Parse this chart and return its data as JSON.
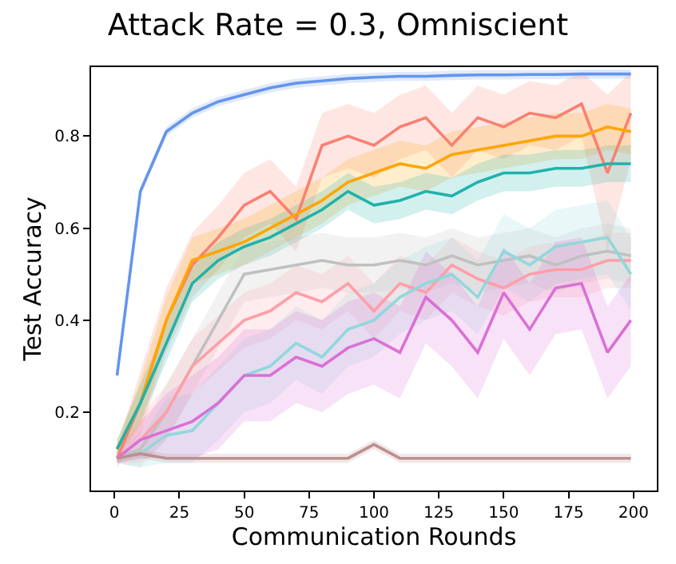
{
  "chart_data": {
    "type": "line",
    "title": "Attack Rate = 0.3, Omniscient",
    "xlabel": "Communication Rounds",
    "ylabel": "Test Accuracy",
    "x": [
      1,
      10,
      20,
      30,
      40,
      50,
      60,
      70,
      80,
      90,
      100,
      110,
      120,
      130,
      140,
      150,
      160,
      170,
      180,
      190,
      199
    ],
    "xlim": [
      -9,
      209
    ],
    "xticks": [
      0,
      25,
      50,
      75,
      100,
      125,
      150,
      175,
      200
    ],
    "ylim": [
      0.03,
      0.95
    ],
    "yticks": [
      0.2,
      0.4,
      0.6,
      0.8
    ],
    "grid": false,
    "marker": "none",
    "line_style": "solid",
    "series": [
      {
        "color": "#6495ed",
        "values": [
          0.28,
          0.68,
          0.81,
          0.85,
          0.875,
          0.89,
          0.905,
          0.915,
          0.92,
          0.925,
          0.928,
          0.93,
          0.93,
          0.932,
          0.933,
          0.933,
          0.934,
          0.934,
          0.935,
          0.935,
          0.935
        ],
        "lower": [
          0.27,
          0.67,
          0.8,
          0.84,
          0.865,
          0.88,
          0.895,
          0.905,
          0.91,
          0.915,
          0.918,
          0.92,
          0.92,
          0.922,
          0.923,
          0.923,
          0.924,
          0.924,
          0.925,
          0.925,
          0.925
        ],
        "upper": [
          0.29,
          0.69,
          0.82,
          0.86,
          0.885,
          0.9,
          0.915,
          0.925,
          0.93,
          0.935,
          0.938,
          0.94,
          0.94,
          0.942,
          0.943,
          0.943,
          0.944,
          0.944,
          0.945,
          0.945,
          0.945
        ]
      },
      {
        "color": "#fa8072",
        "values": [
          0.1,
          0.22,
          0.4,
          0.52,
          0.58,
          0.65,
          0.68,
          0.62,
          0.78,
          0.8,
          0.78,
          0.82,
          0.84,
          0.78,
          0.84,
          0.82,
          0.85,
          0.84,
          0.87,
          0.72,
          0.85
        ],
        "lower": [
          0.08,
          0.15,
          0.33,
          0.45,
          0.51,
          0.58,
          0.61,
          0.55,
          0.71,
          0.73,
          0.71,
          0.75,
          0.77,
          0.71,
          0.77,
          0.75,
          0.78,
          0.77,
          0.8,
          0.55,
          0.75
        ],
        "upper": [
          0.12,
          0.29,
          0.47,
          0.59,
          0.65,
          0.72,
          0.75,
          0.69,
          0.85,
          0.87,
          0.85,
          0.89,
          0.91,
          0.85,
          0.91,
          0.89,
          0.92,
          0.91,
          0.94,
          0.89,
          0.94
        ]
      },
      {
        "color": "#ffa500",
        "values": [
          0.12,
          0.22,
          0.4,
          0.53,
          0.55,
          0.57,
          0.6,
          0.63,
          0.66,
          0.7,
          0.72,
          0.74,
          0.73,
          0.76,
          0.77,
          0.78,
          0.79,
          0.8,
          0.8,
          0.82,
          0.81
        ],
        "lower": [
          0.1,
          0.17,
          0.35,
          0.48,
          0.5,
          0.52,
          0.55,
          0.58,
          0.61,
          0.65,
          0.67,
          0.69,
          0.68,
          0.71,
          0.72,
          0.73,
          0.74,
          0.75,
          0.75,
          0.77,
          0.76
        ],
        "upper": [
          0.14,
          0.27,
          0.45,
          0.58,
          0.6,
          0.62,
          0.65,
          0.68,
          0.71,
          0.75,
          0.77,
          0.79,
          0.78,
          0.81,
          0.82,
          0.83,
          0.84,
          0.85,
          0.85,
          0.87,
          0.86
        ]
      },
      {
        "color": "#20b2aa",
        "values": [
          0.12,
          0.22,
          0.35,
          0.48,
          0.53,
          0.56,
          0.58,
          0.61,
          0.64,
          0.68,
          0.65,
          0.66,
          0.68,
          0.67,
          0.7,
          0.72,
          0.72,
          0.73,
          0.73,
          0.74,
          0.74
        ],
        "lower": [
          0.1,
          0.18,
          0.31,
          0.44,
          0.49,
          0.52,
          0.54,
          0.57,
          0.6,
          0.64,
          0.61,
          0.62,
          0.64,
          0.63,
          0.66,
          0.68,
          0.68,
          0.69,
          0.69,
          0.7,
          0.7
        ],
        "upper": [
          0.14,
          0.26,
          0.39,
          0.52,
          0.57,
          0.6,
          0.62,
          0.65,
          0.68,
          0.72,
          0.69,
          0.7,
          0.72,
          0.71,
          0.74,
          0.76,
          0.76,
          0.77,
          0.77,
          0.78,
          0.78
        ]
      },
      {
        "color": "#c0c0c0",
        "values": [
          0.1,
          0.12,
          0.2,
          0.3,
          0.4,
          0.5,
          0.51,
          0.52,
          0.53,
          0.52,
          0.52,
          0.53,
          0.52,
          0.54,
          0.52,
          0.53,
          0.54,
          0.52,
          0.54,
          0.55,
          0.54
        ],
        "lower": [
          0.09,
          0.08,
          0.14,
          0.24,
          0.34,
          0.44,
          0.45,
          0.46,
          0.47,
          0.46,
          0.46,
          0.47,
          0.46,
          0.48,
          0.46,
          0.47,
          0.48,
          0.46,
          0.48,
          0.49,
          0.48
        ],
        "upper": [
          0.11,
          0.16,
          0.26,
          0.36,
          0.46,
          0.56,
          0.57,
          0.58,
          0.59,
          0.58,
          0.58,
          0.59,
          0.58,
          0.6,
          0.58,
          0.59,
          0.6,
          0.58,
          0.6,
          0.61,
          0.6
        ]
      },
      {
        "color": "#ff9ea8",
        "values": [
          0.1,
          0.14,
          0.2,
          0.3,
          0.35,
          0.4,
          0.42,
          0.46,
          0.44,
          0.48,
          0.42,
          0.48,
          0.46,
          0.52,
          0.49,
          0.47,
          0.5,
          0.51,
          0.51,
          0.53,
          0.53
        ],
        "lower": [
          0.09,
          0.09,
          0.14,
          0.24,
          0.29,
          0.34,
          0.36,
          0.4,
          0.38,
          0.42,
          0.36,
          0.42,
          0.4,
          0.46,
          0.43,
          0.41,
          0.44,
          0.45,
          0.45,
          0.47,
          0.47
        ],
        "upper": [
          0.11,
          0.19,
          0.26,
          0.36,
          0.41,
          0.46,
          0.48,
          0.52,
          0.5,
          0.54,
          0.48,
          0.54,
          0.52,
          0.58,
          0.55,
          0.53,
          0.56,
          0.57,
          0.57,
          0.59,
          0.59
        ]
      },
      {
        "color": "#90d8dc",
        "values": [
          0.1,
          0.11,
          0.15,
          0.16,
          0.22,
          0.28,
          0.3,
          0.35,
          0.32,
          0.38,
          0.4,
          0.45,
          0.48,
          0.5,
          0.45,
          0.55,
          0.52,
          0.56,
          0.57,
          0.58,
          0.5
        ],
        "lower": [
          0.09,
          0.08,
          0.09,
          0.09,
          0.14,
          0.2,
          0.22,
          0.27,
          0.24,
          0.3,
          0.32,
          0.37,
          0.4,
          0.42,
          0.37,
          0.47,
          0.44,
          0.48,
          0.49,
          0.5,
          0.42
        ],
        "upper": [
          0.11,
          0.14,
          0.23,
          0.24,
          0.3,
          0.36,
          0.38,
          0.43,
          0.4,
          0.46,
          0.48,
          0.53,
          0.56,
          0.58,
          0.53,
          0.63,
          0.6,
          0.64,
          0.65,
          0.66,
          0.58
        ]
      },
      {
        "color": "#da70d6",
        "values": [
          0.1,
          0.14,
          0.16,
          0.18,
          0.22,
          0.28,
          0.28,
          0.32,
          0.3,
          0.34,
          0.36,
          0.33,
          0.45,
          0.4,
          0.33,
          0.46,
          0.38,
          0.47,
          0.48,
          0.33,
          0.4
        ],
        "lower": [
          0.09,
          0.1,
          0.1,
          0.1,
          0.12,
          0.18,
          0.18,
          0.22,
          0.2,
          0.24,
          0.26,
          0.23,
          0.35,
          0.3,
          0.23,
          0.36,
          0.28,
          0.37,
          0.38,
          0.23,
          0.3
        ],
        "upper": [
          0.11,
          0.18,
          0.24,
          0.28,
          0.32,
          0.38,
          0.38,
          0.42,
          0.4,
          0.44,
          0.46,
          0.43,
          0.55,
          0.5,
          0.43,
          0.56,
          0.48,
          0.57,
          0.58,
          0.43,
          0.5
        ]
      },
      {
        "color": "#bc8f8f",
        "values": [
          0.1,
          0.11,
          0.1,
          0.1,
          0.1,
          0.1,
          0.1,
          0.1,
          0.1,
          0.1,
          0.13,
          0.1,
          0.1,
          0.1,
          0.1,
          0.1,
          0.1,
          0.1,
          0.1,
          0.1,
          0.1
        ],
        "lower": [
          0.09,
          0.1,
          0.09,
          0.09,
          0.09,
          0.09,
          0.09,
          0.09,
          0.09,
          0.09,
          0.12,
          0.09,
          0.09,
          0.09,
          0.09,
          0.09,
          0.09,
          0.09,
          0.09,
          0.09,
          0.09
        ],
        "upper": [
          0.11,
          0.12,
          0.11,
          0.11,
          0.11,
          0.11,
          0.11,
          0.11,
          0.11,
          0.11,
          0.14,
          0.11,
          0.11,
          0.11,
          0.11,
          0.11,
          0.11,
          0.11,
          0.11,
          0.11,
          0.11
        ]
      }
    ]
  }
}
